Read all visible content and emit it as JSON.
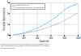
{
  "chart_data": {
    "type": "line",
    "xlabel": "Depth (m)",
    "ylabel": "Elevation dispersion (m)",
    "caption": "Combines 1000 to 1000 pixels de format 14 mm ultrapassive series\ncam configuration approximately mounted modifies avec une lignes\nde base de 50 mm.",
    "xlim": [
      0,
      1000
    ],
    "ylim": [
      0,
      3
    ],
    "xticks": [
      0,
      200,
      400,
      600,
      800,
      1000
    ],
    "yticks": [
      0,
      1,
      2,
      3
    ],
    "grid": true,
    "legend": "upper left",
    "series": [
      {
        "name": "Empirical curves",
        "color": "#55bbff",
        "marker": "circle",
        "line_style": "solid",
        "x": [
          50,
          100,
          150,
          200,
          250,
          300,
          350,
          400,
          450,
          500,
          550,
          600,
          650,
          700,
          750,
          800,
          850,
          900,
          950,
          1000
        ],
        "values": [
          0.04,
          0.09,
          0.15,
          0.22,
          0.31,
          0.42,
          0.54,
          0.67,
          0.82,
          0.99,
          1.17,
          1.37,
          1.59,
          1.83,
          2.09,
          2.36,
          2.56,
          2.7,
          2.82,
          2.95
        ]
      },
      {
        "name": "Theoretical model (for ~10 000 pixels)",
        "color": "#999999",
        "line_style": "dashed",
        "x": [
          0,
          100,
          200,
          300,
          400,
          500,
          600,
          700,
          800,
          900,
          1000
        ],
        "values": [
          0,
          0.08,
          0.18,
          0.3,
          0.44,
          0.62,
          0.83,
          1.08,
          1.38,
          1.72,
          2.1
        ]
      }
    ]
  }
}
